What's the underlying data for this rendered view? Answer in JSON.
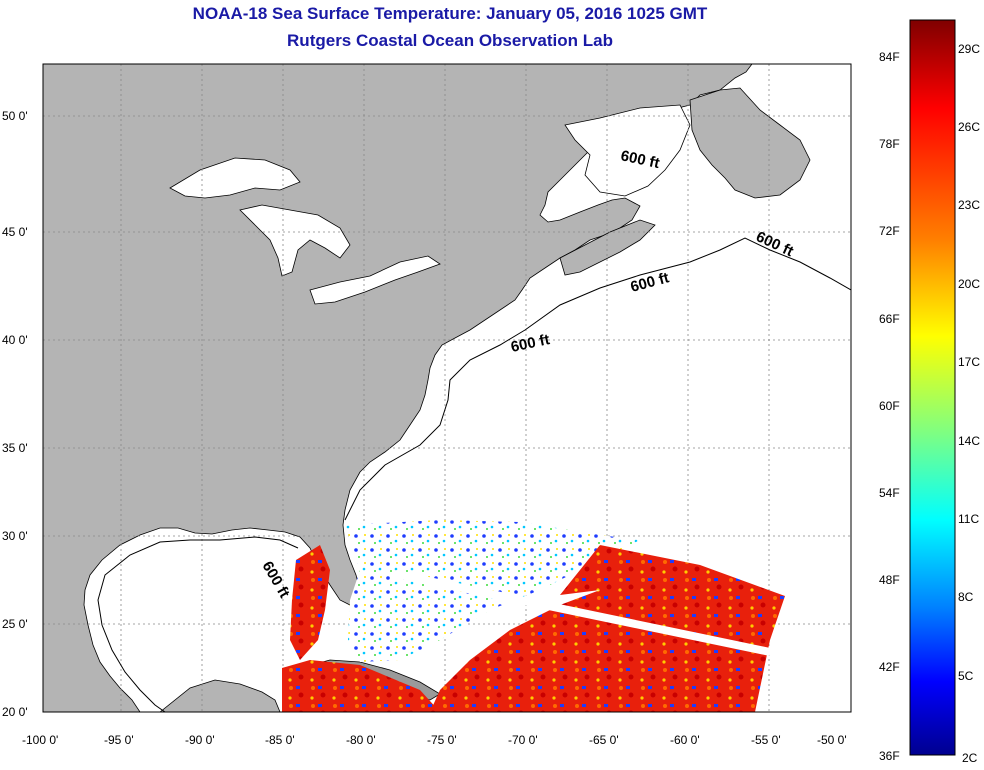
{
  "title": {
    "line1": "NOAA-18 Sea Surface Temperature:  January 05, 2016 1025 GMT",
    "line2": "Rutgers Coastal Ocean Observation Lab"
  },
  "map": {
    "lon_ticks": [
      "-100 0'",
      "-95 0'",
      "-90 0'",
      "-85 0'",
      "-80 0'",
      "-75 0'",
      "-70 0'",
      "-65 0'",
      "-60 0'",
      "-55 0'",
      "-50 0'"
    ],
    "lat_ticks": [
      "20 0'",
      "25 0'",
      "30 0'",
      "35 0'",
      "40 0'",
      "45 0'",
      "50 0'"
    ],
    "contour_label": "600 ft",
    "colors": {
      "land": "#b4b4b4",
      "ocean": "#ffffff",
      "grid": "#888888"
    }
  },
  "colorbar": {
    "f_labels": [
      "84F",
      "78F",
      "72F",
      "66F",
      "60F",
      "54F",
      "48F",
      "42F",
      "36F"
    ],
    "c_labels": [
      "29C",
      "26C",
      "23C",
      "20C",
      "17C",
      "14C",
      "11C",
      "8C",
      "5C",
      "2C"
    ],
    "gradient_colors": [
      "#7f0000",
      "#ff0000",
      "#ff8000",
      "#ffff00",
      "#80ff80",
      "#00ffff",
      "#0080ff",
      "#0000ff",
      "#00008f"
    ]
  }
}
